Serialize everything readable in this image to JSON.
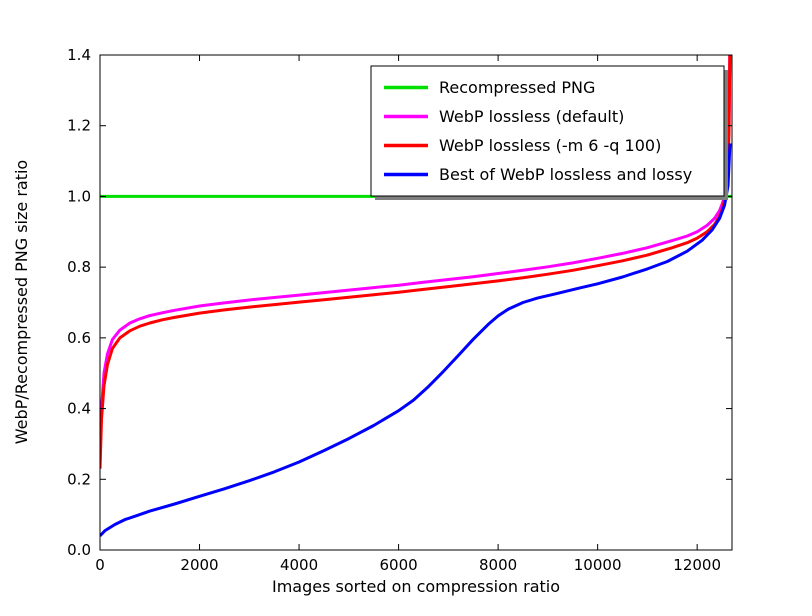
{
  "figure": {
    "background": "#ffffff"
  },
  "chart_data": {
    "type": "line",
    "title": "",
    "xlabel": "Images sorted on compression ratio",
    "ylabel": "WebP/Recompressed PNG size ratio",
    "xlim": [
      0,
      12700
    ],
    "ylim": [
      0.0,
      1.4
    ],
    "grid": false,
    "xticks": {
      "values": [
        0,
        2000,
        4000,
        6000,
        8000,
        10000,
        12000
      ],
      "labels": [
        "0",
        "2000",
        "4000",
        "6000",
        "8000",
        "10000",
        "12000"
      ]
    },
    "yticks": {
      "values": [
        0.0,
        0.2,
        0.4,
        0.6,
        0.8,
        1.0,
        1.2,
        1.4
      ],
      "labels": [
        "0.0",
        "0.2",
        "0.4",
        "0.6",
        "0.8",
        "1.0",
        "1.2",
        "1.4"
      ]
    },
    "legend": {
      "position": "upper center-right",
      "shadow": true,
      "border_color": "#000000",
      "face_color": "#ffffff",
      "shadow_color": "#7f7f7f"
    },
    "series": [
      {
        "name": "Recompressed PNG",
        "color": "#00e000",
        "points": [
          [
            0,
            1.0
          ],
          [
            12700,
            1.0
          ]
        ]
      },
      {
        "name": "WebP lossless (default)",
        "color": "#ff00ff",
        "points": [
          [
            0,
            0.26
          ],
          [
            30,
            0.4
          ],
          [
            80,
            0.5
          ],
          [
            150,
            0.555
          ],
          [
            250,
            0.595
          ],
          [
            400,
            0.622
          ],
          [
            600,
            0.642
          ],
          [
            800,
            0.654
          ],
          [
            1000,
            0.663
          ],
          [
            1250,
            0.671
          ],
          [
            1500,
            0.678
          ],
          [
            2000,
            0.69
          ],
          [
            2500,
            0.699
          ],
          [
            3000,
            0.707
          ],
          [
            3500,
            0.714
          ],
          [
            4000,
            0.721
          ],
          [
            4500,
            0.728
          ],
          [
            5000,
            0.735
          ],
          [
            5500,
            0.742
          ],
          [
            6000,
            0.749
          ],
          [
            6500,
            0.757
          ],
          [
            7000,
            0.765
          ],
          [
            7500,
            0.773
          ],
          [
            8000,
            0.782
          ],
          [
            8500,
            0.791
          ],
          [
            9000,
            0.801
          ],
          [
            9500,
            0.812
          ],
          [
            10000,
            0.825
          ],
          [
            10500,
            0.839
          ],
          [
            11000,
            0.855
          ],
          [
            11500,
            0.875
          ],
          [
            11800,
            0.888
          ],
          [
            12000,
            0.9
          ],
          [
            12200,
            0.918
          ],
          [
            12350,
            0.938
          ],
          [
            12450,
            0.96
          ],
          [
            12520,
            0.985
          ],
          [
            12570,
            1.02
          ],
          [
            12610,
            1.08
          ],
          [
            12640,
            1.2
          ],
          [
            12655,
            1.4
          ]
        ]
      },
      {
        "name": "WebP lossless (-m 6 -q 100)",
        "color": "#ff0000",
        "points": [
          [
            0,
            0.23
          ],
          [
            30,
            0.37
          ],
          [
            80,
            0.465
          ],
          [
            150,
            0.525
          ],
          [
            250,
            0.57
          ],
          [
            400,
            0.6
          ],
          [
            600,
            0.62
          ],
          [
            800,
            0.633
          ],
          [
            1000,
            0.642
          ],
          [
            1250,
            0.651
          ],
          [
            1500,
            0.658
          ],
          [
            2000,
            0.67
          ],
          [
            2500,
            0.679
          ],
          [
            3000,
            0.687
          ],
          [
            3500,
            0.694
          ],
          [
            4000,
            0.701
          ],
          [
            4500,
            0.708
          ],
          [
            5000,
            0.715
          ],
          [
            5500,
            0.722
          ],
          [
            6000,
            0.729
          ],
          [
            6500,
            0.737
          ],
          [
            7000,
            0.745
          ],
          [
            7500,
            0.753
          ],
          [
            8000,
            0.761
          ],
          [
            8500,
            0.77
          ],
          [
            9000,
            0.78
          ],
          [
            9500,
            0.791
          ],
          [
            10000,
            0.804
          ],
          [
            10500,
            0.818
          ],
          [
            11000,
            0.834
          ],
          [
            11500,
            0.855
          ],
          [
            11800,
            0.869
          ],
          [
            12000,
            0.882
          ],
          [
            12200,
            0.9
          ],
          [
            12350,
            0.921
          ],
          [
            12450,
            0.944
          ],
          [
            12520,
            0.97
          ],
          [
            12570,
            1.005
          ],
          [
            12610,
            1.06
          ],
          [
            12640,
            1.18
          ],
          [
            12655,
            1.4
          ]
        ]
      },
      {
        "name": "Best of WebP lossless and lossy",
        "color": "#0000ff",
        "points": [
          [
            0,
            0.04
          ],
          [
            100,
            0.055
          ],
          [
            300,
            0.072
          ],
          [
            500,
            0.086
          ],
          [
            800,
            0.1
          ],
          [
            1000,
            0.11
          ],
          [
            1500,
            0.13
          ],
          [
            2000,
            0.152
          ],
          [
            2500,
            0.173
          ],
          [
            3000,
            0.196
          ],
          [
            3500,
            0.221
          ],
          [
            4000,
            0.249
          ],
          [
            4500,
            0.281
          ],
          [
            5000,
            0.315
          ],
          [
            5500,
            0.352
          ],
          [
            6000,
            0.394
          ],
          [
            6300,
            0.424
          ],
          [
            6600,
            0.462
          ],
          [
            6900,
            0.505
          ],
          [
            7200,
            0.55
          ],
          [
            7500,
            0.596
          ],
          [
            7800,
            0.638
          ],
          [
            8000,
            0.662
          ],
          [
            8200,
            0.681
          ],
          [
            8500,
            0.7
          ],
          [
            8800,
            0.713
          ],
          [
            9200,
            0.726
          ],
          [
            9600,
            0.74
          ],
          [
            10000,
            0.753
          ],
          [
            10500,
            0.772
          ],
          [
            11000,
            0.795
          ],
          [
            11400,
            0.816
          ],
          [
            11800,
            0.845
          ],
          [
            12100,
            0.876
          ],
          [
            12300,
            0.905
          ],
          [
            12450,
            0.938
          ],
          [
            12550,
            0.975
          ],
          [
            12620,
            1.03
          ],
          [
            12660,
            1.15
          ]
        ]
      }
    ]
  }
}
